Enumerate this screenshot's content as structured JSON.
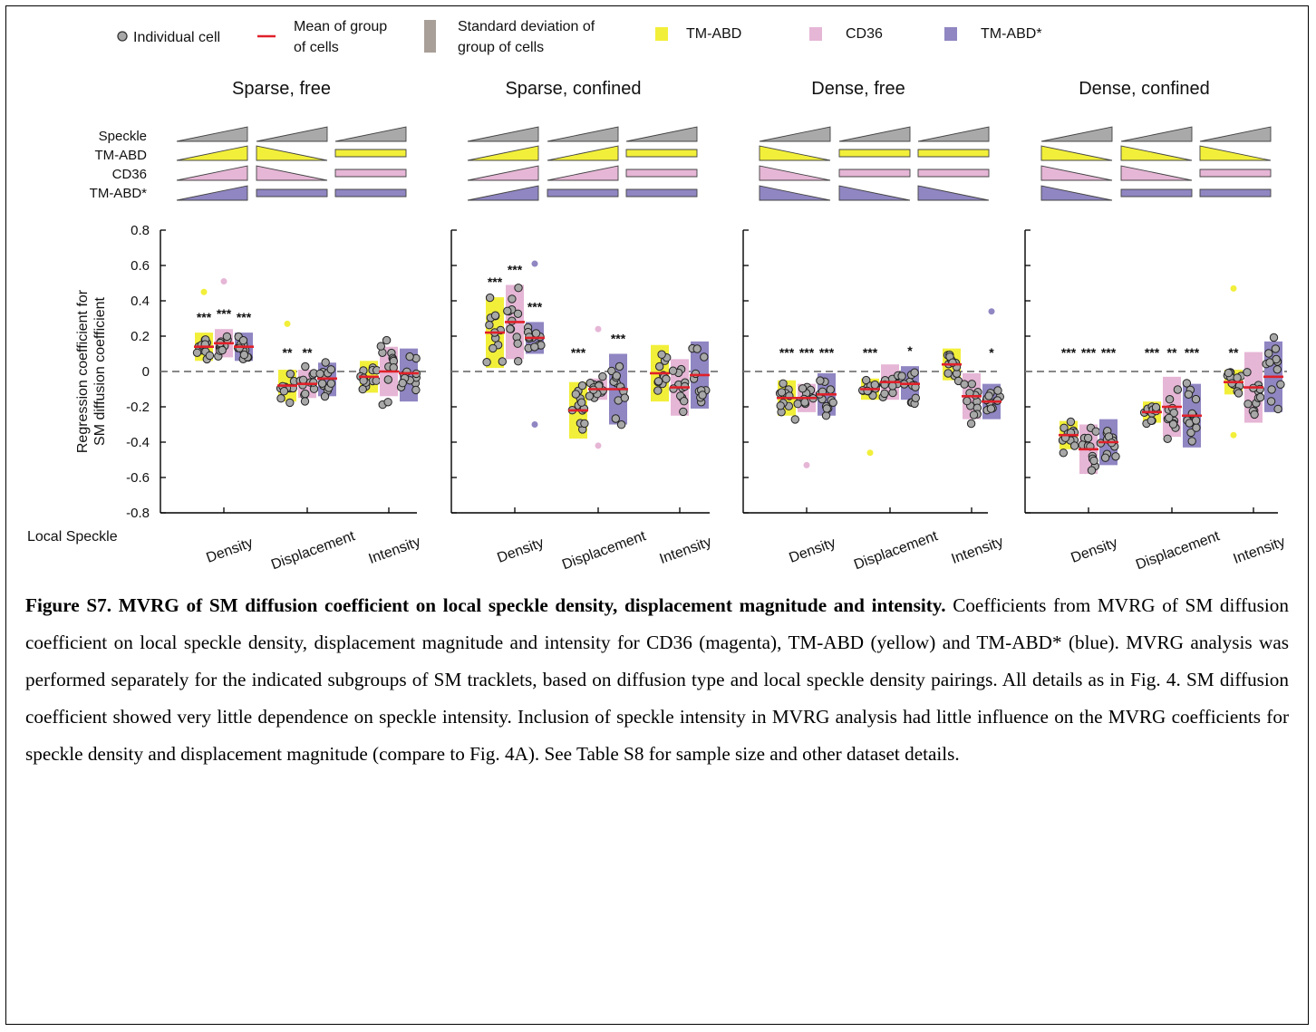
{
  "legend": {
    "individual_cell": "Individual cell",
    "mean_line1": "Mean of group",
    "mean_line2": "of cells",
    "sd_line1": "Standard deviation of",
    "sd_line2": "group of cells",
    "tmabd": "TM-ABD",
    "cd36": "CD36",
    "tmabd_star": "TM-ABD*"
  },
  "colors": {
    "tmabd": "#f2ef3a",
    "cd36": "#e6b6d6",
    "tmabd_star": "#8f86c2",
    "mean": "#e0202a",
    "point_fill": "#a8a8a8",
    "speckle": "#a9a9a9",
    "sd_legend": "#a89f98"
  },
  "row_labels": [
    "Speckle",
    "TM-ABD",
    "CD36",
    "TM-ABD*"
  ],
  "icons": [
    [
      [
        "up",
        "up",
        "up",
        "up"
      ],
      [
        "up",
        "down",
        "down",
        "flat"
      ],
      [
        "up",
        "flat",
        "flat",
        "flat"
      ]
    ],
    [
      [
        "up",
        "up",
        "up",
        "up"
      ],
      [
        "up",
        "up",
        "up",
        "flat"
      ],
      [
        "up",
        "flat",
        "flat",
        "flat"
      ]
    ],
    [
      [
        "up",
        "down",
        "down",
        "down"
      ],
      [
        "up",
        "flat",
        "flat",
        "down"
      ],
      [
        "up",
        "flat",
        "flat",
        "down"
      ]
    ],
    [
      [
        "up",
        "down",
        "down",
        "down"
      ],
      [
        "up",
        "down",
        "down",
        "flat"
      ],
      [
        "up",
        "down",
        "flat",
        "flat"
      ]
    ]
  ],
  "chart_data": {
    "type": "scatter",
    "ylabel_line1": "Regression coefficient for",
    "ylabel_line2": "SM diffusion coefficient",
    "ylim": [
      -0.8,
      0.8
    ],
    "yticks": [
      "0.8",
      "0.6",
      "0.4",
      "0.2",
      "0",
      "-0.2",
      "-0.4",
      "-0.6",
      "-0.8"
    ],
    "ytick_values": [
      0.8,
      0.6,
      0.4,
      0.2,
      0,
      -0.2,
      -0.4,
      -0.6,
      -0.8
    ],
    "xlabel": "Local Speckle",
    "categories": [
      "Density",
      "Displacement",
      "Intensity"
    ],
    "series_order": [
      "TM-ABD",
      "CD36",
      "TM-ABD*"
    ],
    "panels": [
      {
        "title": "Sparse, free",
        "groups": [
          {
            "category": "Density",
            "series": [
              {
                "name": "TM-ABD",
                "mean": 0.14,
                "sd_low": 0.06,
                "sd_high": 0.22,
                "stars": "***",
                "outliers": [
                  0.45
                ]
              },
              {
                "name": "CD36",
                "mean": 0.16,
                "sd_low": 0.08,
                "sd_high": 0.24,
                "stars": "***",
                "outliers": [
                  0.51
                ]
              },
              {
                "name": "TM-ABD*",
                "mean": 0.14,
                "sd_low": 0.06,
                "sd_high": 0.22,
                "stars": "***",
                "outliers": []
              }
            ]
          },
          {
            "category": "Displacement",
            "series": [
              {
                "name": "TM-ABD",
                "mean": -0.08,
                "sd_low": -0.17,
                "sd_high": 0.01,
                "stars": "**",
                "outliers": [
                  0.27
                ]
              },
              {
                "name": "CD36",
                "mean": -0.07,
                "sd_low": -0.15,
                "sd_high": 0.01,
                "stars": "**",
                "outliers": []
              },
              {
                "name": "TM-ABD*",
                "mean": -0.04,
                "sd_low": -0.14,
                "sd_high": 0.05,
                "stars": "",
                "outliers": []
              }
            ]
          },
          {
            "category": "Intensity",
            "series": [
              {
                "name": "TM-ABD",
                "mean": -0.03,
                "sd_low": -0.12,
                "sd_high": 0.06,
                "stars": "",
                "outliers": []
              },
              {
                "name": "CD36",
                "mean": 0.0,
                "sd_low": -0.14,
                "sd_high": 0.14,
                "stars": "",
                "outliers": []
              },
              {
                "name": "TM-ABD*",
                "mean": -0.01,
                "sd_low": -0.17,
                "sd_high": 0.13,
                "stars": "",
                "outliers": []
              }
            ]
          }
        ]
      },
      {
        "title": "Sparse, confined",
        "groups": [
          {
            "category": "Density",
            "series": [
              {
                "name": "TM-ABD",
                "mean": 0.22,
                "sd_low": 0.02,
                "sd_high": 0.42,
                "stars": "***",
                "outliers": []
              },
              {
                "name": "CD36",
                "mean": 0.28,
                "sd_low": 0.07,
                "sd_high": 0.49,
                "stars": "***",
                "outliers": []
              },
              {
                "name": "TM-ABD*",
                "mean": 0.19,
                "sd_low": 0.1,
                "sd_high": 0.28,
                "stars": "***",
                "outliers": [
                  0.61,
                  -0.3
                ]
              }
            ]
          },
          {
            "category": "Displacement",
            "series": [
              {
                "name": "TM-ABD",
                "mean": -0.22,
                "sd_low": -0.38,
                "sd_high": -0.06,
                "stars": "***",
                "outliers": []
              },
              {
                "name": "CD36",
                "mean": -0.1,
                "sd_low": -0.16,
                "sd_high": -0.04,
                "stars": "",
                "outliers": [
                  0.24,
                  -0.42
                ]
              },
              {
                "name": "TM-ABD*",
                "mean": -0.1,
                "sd_low": -0.3,
                "sd_high": 0.1,
                "stars": "***",
                "outliers": []
              }
            ]
          },
          {
            "category": "Intensity",
            "series": [
              {
                "name": "TM-ABD",
                "mean": -0.01,
                "sd_low": -0.17,
                "sd_high": 0.15,
                "stars": "",
                "outliers": []
              },
              {
                "name": "CD36",
                "mean": -0.09,
                "sd_low": -0.25,
                "sd_high": 0.07,
                "stars": "",
                "outliers": []
              },
              {
                "name": "TM-ABD*",
                "mean": -0.02,
                "sd_low": -0.21,
                "sd_high": 0.17,
                "stars": "",
                "outliers": []
              }
            ]
          }
        ]
      },
      {
        "title": "Dense, free",
        "groups": [
          {
            "category": "Density",
            "series": [
              {
                "name": "TM-ABD",
                "mean": -0.15,
                "sd_low": -0.25,
                "sd_high": -0.05,
                "stars": "***",
                "outliers": []
              },
              {
                "name": "CD36",
                "mean": -0.15,
                "sd_low": -0.23,
                "sd_high": -0.07,
                "stars": "***",
                "outliers": [
                  -0.53
                ]
              },
              {
                "name": "TM-ABD*",
                "mean": -0.13,
                "sd_low": -0.25,
                "sd_high": -0.01,
                "stars": "***",
                "outliers": []
              }
            ]
          },
          {
            "category": "Displacement",
            "series": [
              {
                "name": "TM-ABD",
                "mean": -0.1,
                "sd_low": -0.16,
                "sd_high": -0.04,
                "stars": "***",
                "outliers": [
                  -0.46
                ]
              },
              {
                "name": "CD36",
                "mean": -0.06,
                "sd_low": -0.16,
                "sd_high": 0.04,
                "stars": "",
                "outliers": []
              },
              {
                "name": "TM-ABD*",
                "mean": -0.07,
                "sd_low": -0.16,
                "sd_high": 0.03,
                "stars": "*",
                "outliers": []
              }
            ]
          },
          {
            "category": "Intensity",
            "series": [
              {
                "name": "TM-ABD",
                "mean": 0.04,
                "sd_low": -0.05,
                "sd_high": 0.13,
                "stars": "",
                "outliers": []
              },
              {
                "name": "CD36",
                "mean": -0.14,
                "sd_low": -0.27,
                "sd_high": -0.01,
                "stars": "",
                "outliers": []
              },
              {
                "name": "TM-ABD*",
                "mean": -0.17,
                "sd_low": -0.27,
                "sd_high": -0.07,
                "stars": "*",
                "outliers": [
                  0.34
                ]
              }
            ]
          }
        ]
      },
      {
        "title": "Dense, confined",
        "groups": [
          {
            "category": "Density",
            "series": [
              {
                "name": "TM-ABD",
                "mean": -0.36,
                "sd_low": -0.44,
                "sd_high": -0.28,
                "stars": "***",
                "outliers": []
              },
              {
                "name": "CD36",
                "mean": -0.44,
                "sd_low": -0.58,
                "sd_high": -0.3,
                "stars": "***",
                "outliers": []
              },
              {
                "name": "TM-ABD*",
                "mean": -0.4,
                "sd_low": -0.53,
                "sd_high": -0.27,
                "stars": "***",
                "outliers": []
              }
            ]
          },
          {
            "category": "Displacement",
            "series": [
              {
                "name": "TM-ABD",
                "mean": -0.23,
                "sd_low": -0.29,
                "sd_high": -0.17,
                "stars": "***",
                "outliers": []
              },
              {
                "name": "CD36",
                "mean": -0.2,
                "sd_low": -0.37,
                "sd_high": -0.03,
                "stars": "**",
                "outliers": []
              },
              {
                "name": "TM-ABD*",
                "mean": -0.25,
                "sd_low": -0.43,
                "sd_high": -0.07,
                "stars": "***",
                "outliers": []
              }
            ]
          },
          {
            "category": "Intensity",
            "series": [
              {
                "name": "TM-ABD",
                "mean": -0.06,
                "sd_low": -0.13,
                "sd_high": 0.01,
                "stars": "**",
                "outliers": [
                  0.47,
                  -0.36
                ]
              },
              {
                "name": "CD36",
                "mean": -0.09,
                "sd_low": -0.29,
                "sd_high": 0.11,
                "stars": "",
                "outliers": []
              },
              {
                "name": "TM-ABD*",
                "mean": -0.03,
                "sd_low": -0.23,
                "sd_high": 0.17,
                "stars": "",
                "outliers": []
              }
            ]
          }
        ]
      }
    ]
  },
  "caption": {
    "bold": "Figure S7. MVRG of SM diffusion coefficient on local speckle density, displacement magnitude and intensity.",
    "text": " Coefficients from MVRG of SM diffusion coefficient on local speckle density, displacement magnitude and intensity for CD36 (magenta), TM-ABD (yellow) and TM-ABD* (blue). MVRG analysis was performed separately for the indicated subgroups of SM tracklets, based on diffusion type and local speckle density pairings. All details as in Fig. 4. SM diffusion coefficient showed very little dependence on speckle intensity. Inclusion of speckle intensity in MVRG analysis had little influence on the MVRG coefficients for speckle density and displacement magnitude (compare to Fig. 4A). See Table S8 for sample size and other dataset details."
  }
}
